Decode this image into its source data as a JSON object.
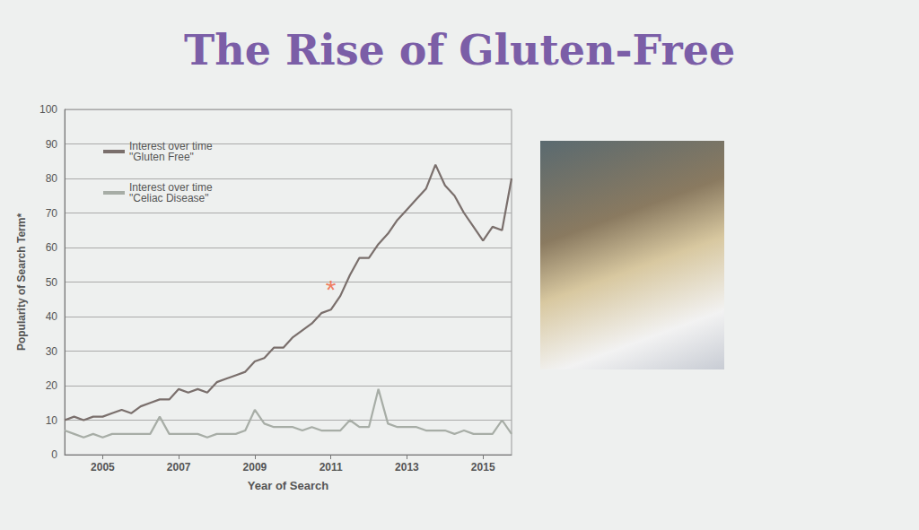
{
  "chart_data": {
    "type": "line",
    "title": "The Rise of Gluten-Free",
    "x_label": "Year of Search",
    "y_label": "Popularity of Search Term*",
    "x": [
      2004,
      2004.25,
      2004.5,
      2004.75,
      2005,
      2005.25,
      2005.5,
      2005.75,
      2006,
      2006.25,
      2006.5,
      2006.75,
      2007,
      2007.25,
      2007.5,
      2007.75,
      2008,
      2008.25,
      2008.5,
      2008.75,
      2009,
      2009.25,
      2009.5,
      2009.75,
      2010,
      2010.25,
      2010.5,
      2010.75,
      2011,
      2011.25,
      2011.5,
      2011.75,
      2012,
      2012.25,
      2012.5,
      2012.75,
      2013,
      2013.25,
      2013.5,
      2013.75,
      2014,
      2014.25,
      2014.5,
      2014.75,
      2015,
      2015.25,
      2015.5,
      2015.75
    ],
    "series": [
      {
        "name": "Interest over time \"Gluten Free\"",
        "color": "#7a6f6c",
        "values": [
          10,
          11,
          10,
          11,
          11,
          12,
          13,
          12,
          14,
          15,
          16,
          16,
          19,
          18,
          19,
          18,
          21,
          22,
          23,
          24,
          27,
          28,
          31,
          31,
          34,
          36,
          38,
          41,
          42,
          46,
          52,
          57,
          57,
          61,
          64,
          68,
          71,
          74,
          77,
          84,
          78,
          75,
          70,
          66,
          62,
          66,
          65,
          80
        ]
      },
      {
        "name": "Interest over time \"Celiac Disease\"",
        "color": "#a7ada6",
        "values": [
          7,
          6,
          5,
          6,
          5,
          6,
          6,
          6,
          6,
          6,
          11,
          6,
          6,
          6,
          6,
          5,
          6,
          6,
          6,
          7,
          13,
          9,
          8,
          8,
          8,
          7,
          8,
          7,
          7,
          7,
          10,
          8,
          8,
          19,
          9,
          8,
          8,
          8,
          7,
          7,
          7,
          6,
          7,
          6,
          6,
          6,
          10,
          6
        ]
      }
    ],
    "annotations": [
      {
        "text": "*",
        "x": 2011,
        "y": 48,
        "color": "#f0603c"
      }
    ],
    "xlim": [
      2004,
      2015.75
    ],
    "xticks": [
      2005,
      2007,
      2009,
      2011,
      2013,
      2015
    ],
    "ylim": [
      0,
      100
    ],
    "yticks": [
      0,
      10,
      20,
      30,
      40,
      50,
      60,
      70,
      80,
      90,
      100
    ],
    "grid": true,
    "legend": "upper left"
  }
}
